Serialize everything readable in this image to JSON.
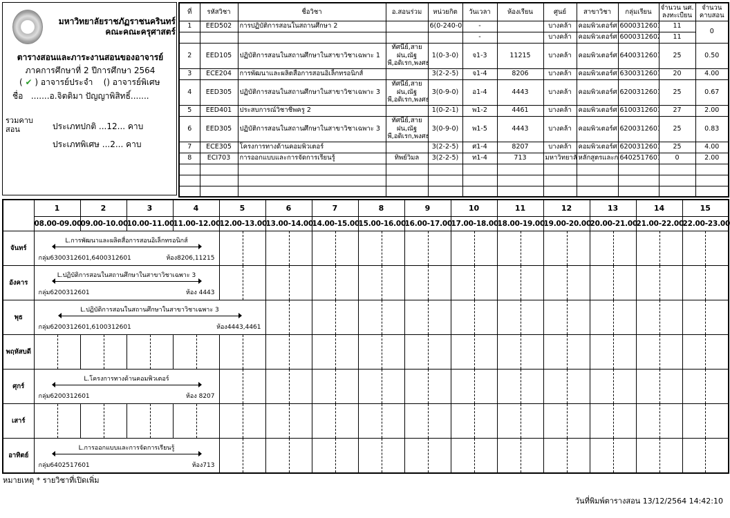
{
  "header": {
    "university": "มหาวิทยาลัยราชภัฏราชนครินทร์",
    "faculty": "คณะคณะครุศาสตร์",
    "title": "ตารางสอนและภาระงานสอนของอาจารย์",
    "term": "ภาคการศึกษาที่ 2 ปีการศึกษา 2564",
    "type_regular_check": "✔",
    "type_regular": "อาจารย์ประจำ",
    "type_special": "() อาจารย์พิเศษ",
    "name_label": "ชื่อ",
    "name_value": ".......อ.จิตติมา ปัญญาพิสิทธิ์......."
  },
  "summary": {
    "label": "รวมคาบสอน",
    "regular": "ประเภทปกติ ...12... คาบ",
    "special": "ประเภทพิเศษ ...2... คาบ"
  },
  "courses": {
    "columns": [
      "ที่",
      "รหัสวิชา",
      "ชื่อวิชา",
      "อ.สอนร่วม",
      "หน่วยกิต",
      "วันเวลา",
      "ห้องเรียน",
      "ศูนย์",
      "สาขาวิชา",
      "กลุ่มเรียน",
      "จำนวน นศ. ลงทะเบียน",
      "จำนวนคาบสอน"
    ],
    "rows": [
      {
        "no": "1",
        "code": "EED502",
        "name": "การปฏิบัติการสอนในสถานศึกษา 2",
        "co": "",
        "credit": "6(0-240-0)",
        "time": "-",
        "room": "",
        "center": "บางคล้า",
        "major": "คอมพิวเตอร์ศ",
        "group": "6000312601",
        "students": "11",
        "periods": "0",
        "extra": {
          "time": "-",
          "room": "",
          "center": "บางคล้า",
          "major": "คอมพิวเตอร์ศ",
          "group": "6000312602",
          "students": "11"
        }
      },
      {
        "no": "2",
        "code": "EED105",
        "name": "ปฏิบัติการสอนในสถานศึกษาในสาขาวิชาเฉพาะ 1",
        "co": "ทัศนีย์,สายฝน,ณัฐพี,อดิเรก,พงศธร",
        "credit": "1(0-3-0)",
        "time": "จ1-3",
        "room": "11215",
        "center": "บางคล้า",
        "major": "คอมพิวเตอร์ศ",
        "group": "6400312601",
        "students": "25",
        "periods": "0.50"
      },
      {
        "no": "3",
        "code": "ECE204",
        "name": "การพัฒนาและผลิตสื่อการสอนอิเล็กทรอนิกส์",
        "co": "",
        "credit": "3(2-2-5)",
        "time": "จ1-4",
        "room": "8206",
        "center": "บางคล้า",
        "major": "คอมพิวเตอร์ศ",
        "group": "6300312601",
        "students": "20",
        "periods": "4.00"
      },
      {
        "no": "4",
        "code": "EED305",
        "name": "ปฏิบัติการสอนในสถานศึกษาในสาขาวิชาเฉพาะ 3",
        "co": "ทัศนีย์,สายฝน,ณัฐพี,อดิเรก,พงศธร",
        "credit": "3(0-9-0)",
        "time": "อ1-4",
        "room": "4443",
        "center": "บางคล้า",
        "major": "คอมพิวเตอร์ศ",
        "group": "6200312601",
        "students": "25",
        "periods": "0.67"
      },
      {
        "no": "5",
        "code": "EED401",
        "name": "ประสบการณ์วิชาชีพครู 2",
        "co": "",
        "credit": "1(0-2-1)",
        "time": "พ1-2",
        "room": "4461",
        "center": "บางคล้า",
        "major": "คอมพิวเตอร์ศ",
        "group": "6100312601",
        "students": "27",
        "periods": "2.00"
      },
      {
        "no": "6",
        "code": "EED305",
        "name": "ปฏิบัติการสอนในสถานศึกษาในสาขาวิชาเฉพาะ 3",
        "co": "ทัศนีย์,สายฝน,ณัฐพี,อดิเรก,พงศธร",
        "credit": "3(0-9-0)",
        "time": "พ1-5",
        "room": "4443",
        "center": "บางคล้า",
        "major": "คอมพิวเตอร์ศ",
        "group": "6200312601",
        "students": "25",
        "periods": "0.83"
      },
      {
        "no": "7",
        "code": "ECE305",
        "name": "โครงการทางด้านคอมพิวเตอร์",
        "co": "",
        "credit": "3(2-2-5)",
        "time": "ศ1-4",
        "room": "8207",
        "center": "บางคล้า",
        "major": "คอมพิวเตอร์ศ",
        "group": "6200312601",
        "students": "25",
        "periods": "4.00"
      },
      {
        "no": "8",
        "code": "ECI703",
        "name": "การออกแบบและการจัดการเรียนรู้",
        "co": "ทิพย์วิมล",
        "credit": "3(2-2-5)",
        "time": "ท1-4",
        "room": "713",
        "center": "มหาวิทยาลัย",
        "major": "หลักสูตรและก",
        "group": "6402517601",
        "students": "0",
        "periods": "2.00"
      }
    ]
  },
  "timetable": {
    "periods": [
      "1",
      "2",
      "3",
      "4",
      "5",
      "6",
      "7",
      "8",
      "9",
      "10",
      "11",
      "12",
      "13",
      "14",
      "15"
    ],
    "times": [
      "08.00-09.00",
      "09.00-10.00",
      "10.00-11.00",
      "11.00-12.00",
      "12.00-13.00",
      "13.00-14.00",
      "14.00-15.00",
      "15.00-16.00",
      "16.00-17.00",
      "17.00-18.00",
      "18.00-19.00",
      "19.00-20.00",
      "20.00-21.00",
      "21.00-22.00",
      "22.00-23.00"
    ],
    "days": [
      {
        "name": "จันทร์",
        "block": {
          "start": 1,
          "end": 4,
          "title": "L.การพัฒนาและผลิตสื่อการสอนอิเล็กทรอนิกส์",
          "group": "กลุ่ม6300312601,6400312601",
          "room": "ห้อง8206,11215"
        }
      },
      {
        "name": "อังคาร",
        "block": {
          "start": 1,
          "end": 4,
          "title": "L.ปฏิบัติการสอนในสถานศึกษาในสาขาวิชาเฉพาะ 3",
          "group": "กลุ่ม6200312601",
          "room": "ห้อง 4443"
        }
      },
      {
        "name": "พุธ",
        "block": {
          "start": 1,
          "end": 5,
          "title": "L.ปฏิบัติการสอนในสถานศึกษาในสาขาวิชาเฉพาะ 3",
          "group": "กลุ่ม6200312601,6100312601",
          "room": "ห้อง4443,4461"
        }
      },
      {
        "name": "พฤหัสบดี"
      },
      {
        "name": "ศุกร์",
        "block": {
          "start": 1,
          "end": 4,
          "title": "L.โครงการทางด้านคอมพิวเตอร์",
          "group": "กลุ่ม6200312601",
          "room": "ห้อง 8207"
        }
      },
      {
        "name": "เสาร์"
      },
      {
        "name": "อาทิตย์",
        "block": {
          "start": 1,
          "end": 4,
          "title": "L.การออกแบบและการจัดการเรียนรู้",
          "group": "กลุ่ม6402517601",
          "room": "ห้อง713"
        }
      }
    ]
  },
  "footer": {
    "note": "หมายเหตุ * รายวิชาที่เปิดเพิ่ม",
    "printed": "วันที่พิมพ์ตารางสอน 13/12/2564 14:42:10"
  }
}
